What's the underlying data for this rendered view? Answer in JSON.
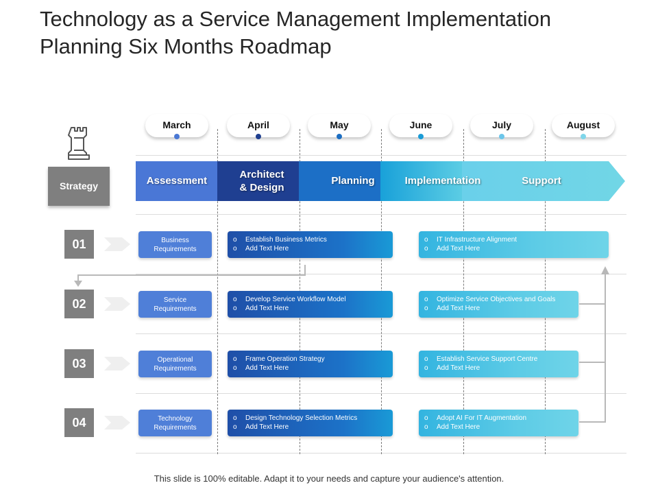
{
  "title": "Technology as a Service Management Implementation Planning Six Months Roadmap",
  "months": [
    "March",
    "April",
    "May",
    "June",
    "July",
    "August"
  ],
  "month_dot_colors": [
    "#4a78d4",
    "#1f3f8f",
    "#1c6ec2",
    "#1a9bd6",
    "#6cc6ea",
    "#7fd6ea"
  ],
  "strategy_label": "Strategy",
  "phases": [
    "Assessment",
    "Architect & Design",
    "Planning",
    "Implementation",
    "Support"
  ],
  "phase_colors": [
    "#4a77d6",
    "#1f3f91",
    "#1c6fc6",
    "#19a1d9",
    "#6dd1e6"
  ],
  "rows": [
    {
      "number": "01",
      "requirement": "Business Requirements",
      "mid": [
        "Establish Business Metrics",
        "Add Text Here"
      ],
      "right": [
        "IT Infrastructure Alignment",
        "Add Text Here"
      ]
    },
    {
      "number": "02",
      "requirement": "Service Requirements",
      "mid": [
        "Develop Service Workflow Model",
        "Add Text Here"
      ],
      "right": [
        "Optimize Service Objectives and Goals",
        "Add Text Here"
      ]
    },
    {
      "number": "03",
      "requirement": "Operational Requirements",
      "mid": [
        "Frame Operation Strategy",
        "Add Text Here"
      ],
      "right": [
        "Establish Service Support Centre",
        "Add Text Here"
      ]
    },
    {
      "number": "04",
      "requirement": "Technology Requirements",
      "mid": [
        "Design Technology Selection Metrics",
        "Add Text Here"
      ],
      "right": [
        "Adopt AI For IT Augmentation",
        "Add Text Here"
      ]
    }
  ],
  "bullet": "o",
  "footer": "This slide is 100% editable. Adapt it to your needs and capture your audience's attention."
}
